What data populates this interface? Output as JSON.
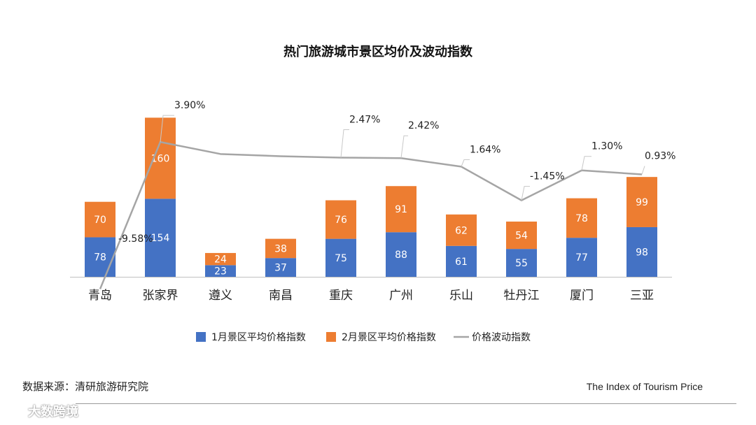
{
  "chart_data": {
    "type": "stacked-bar+line",
    "title": "热门旅游城市景区均价及波动指数",
    "categories": [
      "青岛",
      "张家界",
      "遵义",
      "南昌",
      "重庆",
      "广州",
      "乐山",
      "牡丹江",
      "厦门",
      "三亚"
    ],
    "series": [
      {
        "name": "1月景区平均价格指数",
        "type": "bar",
        "color": "#4472C4",
        "values": [
          78,
          154,
          23,
          37,
          75,
          88,
          61,
          55,
          77,
          98
        ]
      },
      {
        "name": "2月景区平均价格指数",
        "type": "bar",
        "color": "#ED7D31",
        "values": [
          70,
          160,
          24,
          38,
          76,
          91,
          62,
          54,
          78,
          99
        ]
      },
      {
        "name": "价格波动指数",
        "type": "line",
        "color": "#A5A5A5",
        "values": [
          -9.58,
          3.9,
          2.8,
          2.6,
          2.47,
          2.42,
          1.64,
          -1.45,
          1.3,
          0.93
        ]
      }
    ],
    "line_labels": [
      "-9.58%",
      "3.90%",
      "",
      "",
      "2.47%",
      "2.42%",
      "1.64%",
      "-1.45%",
      "1.30%",
      "0.93%"
    ],
    "bar_ylim": [
      0,
      320
    ],
    "line_ylim": [
      -10,
      10
    ],
    "legend_position": "bottom-center",
    "grid": false
  },
  "footer": {
    "source": "数据来源：清研旅游研究院",
    "brand": "The Index of Tourism Price"
  },
  "watermark": {
    "text": "大数跨境",
    "icon": "chat-bubble-icon"
  }
}
